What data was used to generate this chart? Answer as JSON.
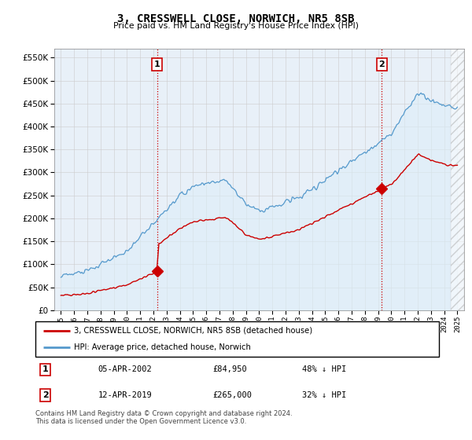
{
  "title": "3, CRESSWELL CLOSE, NORWICH, NR5 8SB",
  "subtitle": "Price paid vs. HM Land Registry's House Price Index (HPI)",
  "ytick_values": [
    0,
    50000,
    100000,
    150000,
    200000,
    250000,
    300000,
    350000,
    400000,
    450000,
    500000,
    550000
  ],
  "ylim": [
    0,
    570000
  ],
  "sale1": {
    "date_num": 2002.27,
    "price": 84950,
    "label": "1",
    "date_str": "05-APR-2002",
    "pct": "48% ↓ HPI"
  },
  "sale2": {
    "date_num": 2019.28,
    "price": 265000,
    "label": "2",
    "date_str": "12-APR-2019",
    "pct": "32% ↓ HPI"
  },
  "legend_house": "3, CRESSWELL CLOSE, NORWICH, NR5 8SB (detached house)",
  "legend_hpi": "HPI: Average price, detached house, Norwich",
  "footnote": "Contains HM Land Registry data © Crown copyright and database right 2024.\nThis data is licensed under the Open Government Licence v3.0.",
  "table_rows": [
    {
      "num": "1",
      "date": "05-APR-2002",
      "price": "£84,950",
      "pct": "48% ↓ HPI"
    },
    {
      "num": "2",
      "date": "12-APR-2019",
      "price": "£265,000",
      "pct": "32% ↓ HPI"
    }
  ],
  "house_color": "#cc0000",
  "hpi_color": "#6ab0d8",
  "hpi_fill_color": "#ddeeff",
  "vline_color": "#cc0000",
  "marker_color": "#cc0000",
  "box_color": "#cc0000",
  "bg_color": "#f0f4f8"
}
